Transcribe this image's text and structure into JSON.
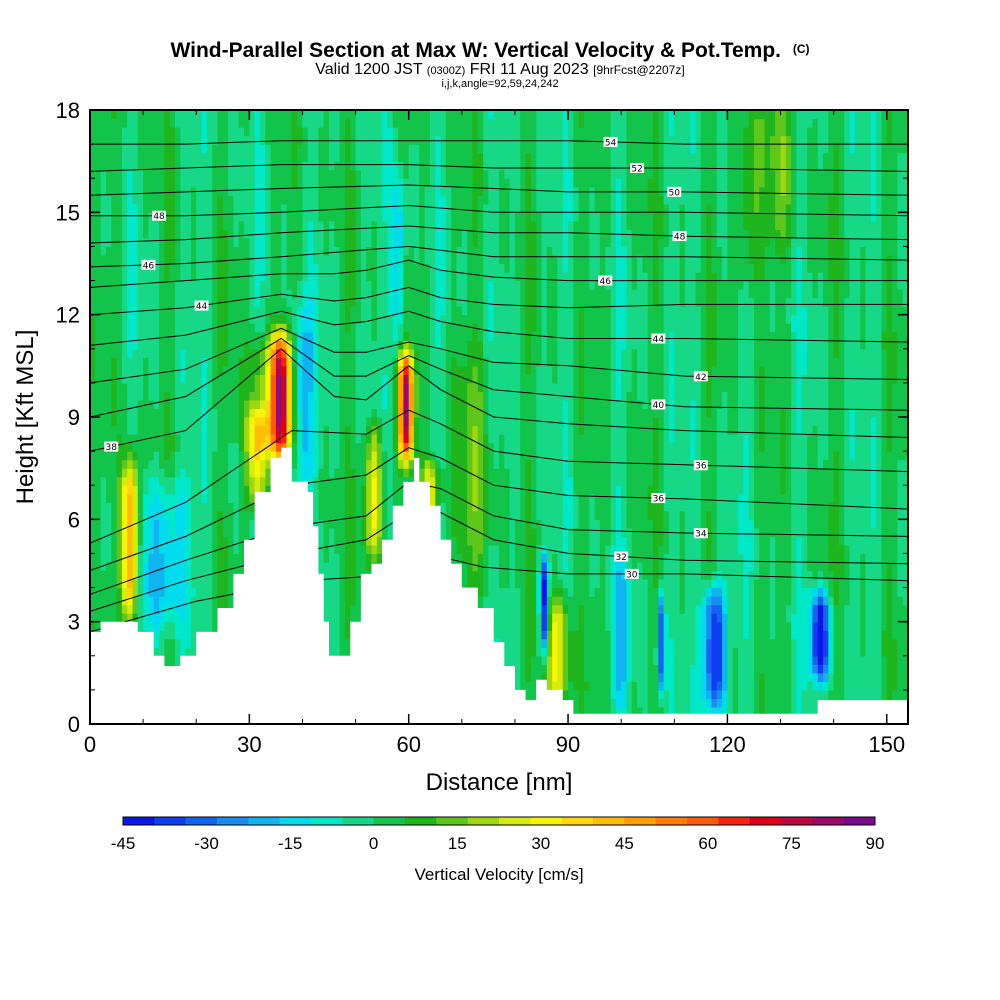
{
  "chart_data": {
    "type": "heatmap",
    "title": "Wind-Parallel Section at Max W: Vertical Velocity & Pot.Temp.",
    "title_mark": "(C)",
    "subtitle": {
      "valid": "Valid 1200 JST",
      "utc": "(0300Z)",
      "date": "FRI 11 Aug 2023",
      "forecast": "[9hrFcst@2207z]"
    },
    "params": "i,j,k,angle=92,59,24,242",
    "xlabel": "Distance [nm]",
    "ylabel": "Height [Kft MSL]",
    "xlim": [
      0,
      154
    ],
    "ylim": [
      0,
      18
    ],
    "x_ticks": [
      0,
      30,
      60,
      90,
      120,
      150
    ],
    "y_ticks": [
      0,
      3,
      6,
      9,
      12,
      15,
      18
    ],
    "colorbar": {
      "label": "Vertical Velocity [cm/s]",
      "range": [
        -45,
        90
      ],
      "tick_values": [
        -45,
        -30,
        -15,
        0,
        15,
        30,
        45,
        60,
        75,
        90
      ],
      "colors": [
        "#0b16e8",
        "#0f3ef0",
        "#1464f0",
        "#1a8cf0",
        "#10b4f0",
        "#00dcee",
        "#00e8c8",
        "#16d886",
        "#12c44a",
        "#1fb51e",
        "#5fc61c",
        "#9fd80e",
        "#d6ec0c",
        "#f6f60a",
        "#ffd60a",
        "#ffbd06",
        "#ffa004",
        "#ff7c06",
        "#ff5a0a",
        "#f72210",
        "#e0001a",
        "#b80a3e",
        "#9a0a66",
        "#7a0a8a"
      ]
    },
    "terrain": [
      [
        0,
        2.7
      ],
      [
        2,
        3.0
      ],
      [
        6,
        3.0
      ],
      [
        9,
        2.7
      ],
      [
        12,
        2.0
      ],
      [
        14,
        1.7
      ],
      [
        17,
        2.0
      ],
      [
        20,
        2.7
      ],
      [
        24,
        3.4
      ],
      [
        27,
        4.4
      ],
      [
        29,
        5.4
      ],
      [
        31,
        6.8
      ],
      [
        34,
        7.8
      ],
      [
        36,
        8.1
      ],
      [
        38,
        7.1
      ],
      [
        41,
        6.8
      ],
      [
        42,
        5.8
      ],
      [
        43,
        4.4
      ],
      [
        44,
        3.0
      ],
      [
        45,
        2.0
      ],
      [
        47,
        2.0
      ],
      [
        49,
        3.0
      ],
      [
        51,
        4.4
      ],
      [
        53,
        4.7
      ],
      [
        55,
        5.4
      ],
      [
        57,
        6.4
      ],
      [
        59,
        7.1
      ],
      [
        61,
        7.8
      ],
      [
        62,
        7.1
      ],
      [
        64,
        6.4
      ],
      [
        66,
        5.4
      ],
      [
        68,
        4.7
      ],
      [
        70,
        4.0
      ],
      [
        73,
        3.4
      ],
      [
        76,
        2.4
      ],
      [
        78,
        1.7
      ],
      [
        80,
        1.0
      ],
      [
        82,
        0.7
      ],
      [
        84,
        1.3
      ],
      [
        86,
        1.0
      ],
      [
        89,
        0.7
      ],
      [
        91,
        0.3
      ],
      [
        132,
        0.3
      ],
      [
        137,
        0.7
      ],
      [
        154,
        0.7
      ]
    ],
    "theta_isentropes": [
      {
        "label": "30",
        "label_x": 102,
        "points": [
          [
            0,
            2.7
          ],
          [
            20,
            3.6
          ],
          [
            40,
            4.2
          ],
          [
            60,
            4.4
          ],
          [
            66,
            4.9
          ],
          [
            74,
            4.6
          ],
          [
            90,
            4.4
          ],
          [
            112,
            4.4
          ],
          [
            154,
            4.2
          ]
        ]
      },
      {
        "label": "32",
        "label_x": 100,
        "points": [
          [
            0,
            3.3
          ],
          [
            18,
            4.2
          ],
          [
            38,
            5.0
          ],
          [
            52,
            5.4
          ],
          [
            60,
            6.2
          ],
          [
            66,
            6.2
          ],
          [
            76,
            5.4
          ],
          [
            90,
            5.0
          ],
          [
            112,
            4.8
          ],
          [
            154,
            4.7
          ]
        ]
      },
      {
        "label": "34",
        "label_x": 115,
        "points": [
          [
            0,
            3.8
          ],
          [
            18,
            4.8
          ],
          [
            38,
            5.8
          ],
          [
            52,
            6.1
          ],
          [
            60,
            7.1
          ],
          [
            66,
            6.9
          ],
          [
            76,
            6.1
          ],
          [
            90,
            5.7
          ],
          [
            112,
            5.6
          ],
          [
            154,
            5.5
          ]
        ]
      },
      {
        "label": "36",
        "label_x": 107,
        "points": [
          [
            0,
            4.5
          ],
          [
            18,
            5.5
          ],
          [
            38,
            7.0
          ],
          [
            52,
            7.3
          ],
          [
            60,
            8.1
          ],
          [
            66,
            7.8
          ],
          [
            76,
            7.0
          ],
          [
            90,
            6.7
          ],
          [
            112,
            6.6
          ],
          [
            154,
            6.3
          ]
        ]
      },
      {
        "label": "36",
        "label_x": 115,
        "points": [
          [
            0,
            5.3
          ],
          [
            18,
            6.5
          ],
          [
            38,
            8.6
          ],
          [
            52,
            8.5
          ],
          [
            60,
            9.2
          ],
          [
            66,
            8.8
          ],
          [
            76,
            8.0
          ],
          [
            90,
            7.7
          ],
          [
            112,
            7.6
          ],
          [
            154,
            7.4
          ]
        ]
      },
      {
        "label": "38",
        "label_x": 4,
        "points": [
          [
            0,
            8.0
          ],
          [
            18,
            8.6
          ],
          [
            36,
            11.0
          ],
          [
            46,
            9.6
          ],
          [
            52,
            9.5
          ],
          [
            60,
            10.5
          ],
          [
            66,
            9.8
          ],
          [
            76,
            9.0
          ],
          [
            90,
            8.8
          ],
          [
            112,
            8.6
          ],
          [
            154,
            8.4
          ]
        ]
      },
      {
        "label": "40",
        "label_x": 107,
        "points": [
          [
            0,
            9.0
          ],
          [
            18,
            9.6
          ],
          [
            36,
            11.3
          ],
          [
            46,
            10.2
          ],
          [
            52,
            10.2
          ],
          [
            60,
            10.8
          ],
          [
            66,
            10.4
          ],
          [
            76,
            9.8
          ],
          [
            90,
            9.6
          ],
          [
            112,
            9.3
          ],
          [
            154,
            9.2
          ]
        ]
      },
      {
        "label": "42",
        "label_x": 115,
        "points": [
          [
            0,
            10.0
          ],
          [
            18,
            10.4
          ],
          [
            36,
            11.6
          ],
          [
            46,
            10.9
          ],
          [
            52,
            10.9
          ],
          [
            60,
            11.2
          ],
          [
            66,
            11.0
          ],
          [
            76,
            10.6
          ],
          [
            90,
            10.5
          ],
          [
            112,
            10.2
          ],
          [
            154,
            10.1
          ]
        ]
      },
      {
        "label": "44",
        "label_x": 107,
        "points": [
          [
            0,
            11.1
          ],
          [
            18,
            11.4
          ],
          [
            36,
            12.1
          ],
          [
            46,
            11.7
          ],
          [
            52,
            11.8
          ],
          [
            60,
            12.1
          ],
          [
            66,
            11.8
          ],
          [
            76,
            11.5
          ],
          [
            90,
            11.3
          ],
          [
            112,
            11.3
          ],
          [
            154,
            11.2
          ]
        ]
      },
      {
        "label": "44",
        "label_x": 21,
        "points": [
          [
            0,
            12.0
          ],
          [
            18,
            12.2
          ],
          [
            36,
            12.6
          ],
          [
            46,
            12.4
          ],
          [
            52,
            12.5
          ],
          [
            60,
            12.8
          ],
          [
            66,
            12.5
          ],
          [
            76,
            12.3
          ],
          [
            90,
            12.2
          ],
          [
            112,
            12.3
          ],
          [
            154,
            12.3
          ]
        ]
      },
      {
        "label": "46",
        "label_x": 97,
        "points": [
          [
            0,
            12.8
          ],
          [
            18,
            13.0
          ],
          [
            36,
            13.2
          ],
          [
            46,
            13.2
          ],
          [
            52,
            13.3
          ],
          [
            60,
            13.6
          ],
          [
            66,
            13.3
          ],
          [
            76,
            13.1
          ],
          [
            90,
            13.0
          ],
          [
            112,
            13.0
          ],
          [
            154,
            13.0
          ]
        ]
      },
      {
        "label": "46",
        "label_x": 11,
        "points": [
          [
            0,
            13.4
          ],
          [
            18,
            13.5
          ],
          [
            36,
            13.7
          ],
          [
            60,
            14.0
          ],
          [
            76,
            13.7
          ],
          [
            90,
            13.7
          ],
          [
            112,
            13.7
          ],
          [
            154,
            13.6
          ]
        ]
      },
      {
        "label": "48",
        "label_x": 111,
        "points": [
          [
            0,
            14.1
          ],
          [
            18,
            14.2
          ],
          [
            36,
            14.4
          ],
          [
            60,
            14.6
          ],
          [
            76,
            14.4
          ],
          [
            90,
            14.4
          ],
          [
            112,
            14.3
          ],
          [
            154,
            14.2
          ]
        ]
      },
      {
        "label": "48",
        "label_x": 13,
        "points": [
          [
            0,
            14.9
          ],
          [
            18,
            14.9
          ],
          [
            36,
            15.0
          ],
          [
            60,
            15.2
          ],
          [
            76,
            15.0
          ],
          [
            90,
            15.0
          ],
          [
            112,
            15.0
          ],
          [
            154,
            14.9
          ]
        ]
      },
      {
        "label": "50",
        "label_x": 110,
        "points": [
          [
            0,
            15.5
          ],
          [
            18,
            15.6
          ],
          [
            36,
            15.7
          ],
          [
            60,
            15.8
          ],
          [
            76,
            15.7
          ],
          [
            90,
            15.6
          ],
          [
            112,
            15.6
          ],
          [
            154,
            15.5
          ]
        ]
      },
      {
        "label": "52",
        "label_x": 103,
        "points": [
          [
            0,
            16.2
          ],
          [
            18,
            16.3
          ],
          [
            36,
            16.4
          ],
          [
            60,
            16.4
          ],
          [
            76,
            16.3
          ],
          [
            90,
            16.3
          ],
          [
            112,
            16.3
          ],
          [
            154,
            16.2
          ]
        ]
      },
      {
        "label": "54",
        "label_x": 98,
        "points": [
          [
            0,
            17.0
          ],
          [
            18,
            17.0
          ],
          [
            36,
            17.1
          ],
          [
            60,
            17.1
          ],
          [
            76,
            17.1
          ],
          [
            90,
            17.1
          ],
          [
            112,
            17.0
          ],
          [
            154,
            17.0
          ]
        ]
      }
    ],
    "w_features": [
      {
        "x": 36,
        "x_half_width": 1.8,
        "y_top": 11.2,
        "y_bottom": 8.0,
        "w_max": 70
      },
      {
        "x": 59.5,
        "x_half_width": 1.4,
        "y_top": 10.6,
        "y_bottom": 8.0,
        "w_max": 75
      },
      {
        "x": 31.5,
        "x_half_width": 2.0,
        "y_top": 9.0,
        "y_bottom": 6.5,
        "w_max": 35
      },
      {
        "x": 33,
        "x_half_width": 3.5,
        "y_top": 11.0,
        "y_bottom": 8.0,
        "w_max": 20
      },
      {
        "x": 7.5,
        "x_half_width": 1.6,
        "y_top": 7.5,
        "y_bottom": 3.2,
        "w_max": 55
      },
      {
        "x": 53.5,
        "x_half_width": 1.8,
        "y_top": 8.5,
        "y_bottom": 5.0,
        "w_max": 30
      },
      {
        "x": 64,
        "x_half_width": 1.8,
        "y_top": 7.5,
        "y_bottom": 6.0,
        "w_max": 30
      },
      {
        "x": 88,
        "x_half_width": 2.2,
        "y_top": 3.5,
        "y_bottom": 0.6,
        "w_max": 30
      },
      {
        "x": 14,
        "x_half_width": 5.0,
        "y_top": 7.0,
        "y_bottom": 3.0,
        "w_max": -20
      },
      {
        "x": 40,
        "x_half_width": 2.0,
        "y_top": 12.0,
        "y_bottom": 7.0,
        "w_max": -20
      },
      {
        "x": 58,
        "x_half_width": 1.2,
        "y_top": 16.0,
        "y_bottom": 11.0,
        "w_max": -20
      },
      {
        "x": 85.5,
        "x_half_width": 0.8,
        "y_top": 4.6,
        "y_bottom": 2.4,
        "w_max": -45
      },
      {
        "x": 117.5,
        "x_half_width": 2.2,
        "y_top": 3.8,
        "y_bottom": 0.6,
        "w_max": -45
      },
      {
        "x": 137.5,
        "x_half_width": 1.8,
        "y_top": 3.6,
        "y_bottom": 1.6,
        "w_max": -45
      },
      {
        "x": 107.5,
        "x_half_width": 0.7,
        "y_top": 3.6,
        "y_bottom": 1.2,
        "w_max": -35
      },
      {
        "x": 100,
        "x_half_width": 1.5,
        "y_top": 4.5,
        "y_bottom": 0.6,
        "w_max": -15
      },
      {
        "x": 124,
        "x_half_width": 2.5,
        "y_top": 18.0,
        "y_bottom": 13.0,
        "w_max": 15
      },
      {
        "x": 130,
        "x_half_width": 2.5,
        "y_top": 18.0,
        "y_bottom": 14.0,
        "w_max": 12
      },
      {
        "x": 72,
        "x_half_width": 4.0,
        "y_top": 11.0,
        "y_bottom": 4.0,
        "w_max": 10
      }
    ]
  }
}
